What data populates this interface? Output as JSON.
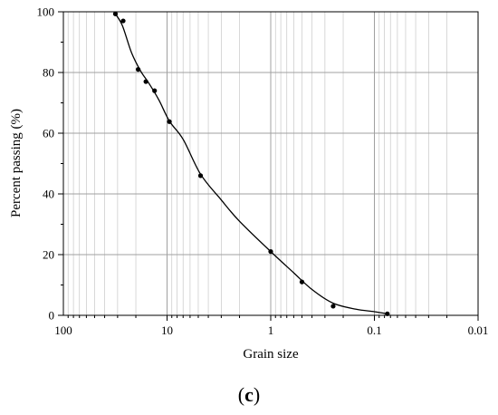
{
  "chart_data": {
    "type": "scatter",
    "xlabel": "Grain size",
    "ylabel": "Percent passing (%)",
    "x_scale": "log",
    "x_reversed": true,
    "xlim": [
      100,
      0.01
    ],
    "ylim": [
      0,
      100
    ],
    "grid": true,
    "x_ticks": [
      {
        "value": 100,
        "label": "100"
      },
      {
        "value": 10,
        "label": "10"
      },
      {
        "value": 1,
        "label": "1"
      },
      {
        "value": 0.1,
        "label": "0.1"
      },
      {
        "value": 0.01,
        "label": "0.01"
      }
    ],
    "y_ticks": [
      {
        "value": 0,
        "label": "0"
      },
      {
        "value": 20,
        "label": "20"
      },
      {
        "value": 40,
        "label": "40"
      },
      {
        "value": 60,
        "label": "60"
      },
      {
        "value": 80,
        "label": "80"
      },
      {
        "value": 100,
        "label": "100"
      }
    ],
    "points": [
      {
        "x": 31.5,
        "y": 99.3
      },
      {
        "x": 26.5,
        "y": 97
      },
      {
        "x": 19,
        "y": 81
      },
      {
        "x": 16,
        "y": 77
      },
      {
        "x": 13.2,
        "y": 74
      },
      {
        "x": 9.5,
        "y": 63.8
      },
      {
        "x": 4.75,
        "y": 46
      },
      {
        "x": 1.0,
        "y": 21
      },
      {
        "x": 0.5,
        "y": 11
      },
      {
        "x": 0.25,
        "y": 3
      },
      {
        "x": 0.075,
        "y": 0.5
      }
    ],
    "series": [
      {
        "style": "smooth-line",
        "points": [
          {
            "x": 31.5,
            "y": 99.3
          },
          {
            "x": 27,
            "y": 95.5
          },
          {
            "x": 22,
            "y": 86.5
          },
          {
            "x": 18,
            "y": 80.5
          },
          {
            "x": 15,
            "y": 76.5
          },
          {
            "x": 12,
            "y": 71
          },
          {
            "x": 9.5,
            "y": 64
          },
          {
            "x": 7,
            "y": 58
          },
          {
            "x": 4.75,
            "y": 46.5
          },
          {
            "x": 3,
            "y": 38
          },
          {
            "x": 2,
            "y": 31
          },
          {
            "x": 1.0,
            "y": 21
          },
          {
            "x": 0.6,
            "y": 14
          },
          {
            "x": 0.4,
            "y": 8.5
          },
          {
            "x": 0.25,
            "y": 4
          },
          {
            "x": 0.15,
            "y": 2
          },
          {
            "x": 0.1,
            "y": 1.2
          },
          {
            "x": 0.075,
            "y": 0.5
          }
        ]
      }
    ],
    "colors": {
      "line": "#000000",
      "marker": "#000000",
      "grid": "#c8c8c8",
      "axis": "#000000"
    }
  },
  "caption": {
    "open": "(",
    "letter": "c",
    "close": ")"
  }
}
